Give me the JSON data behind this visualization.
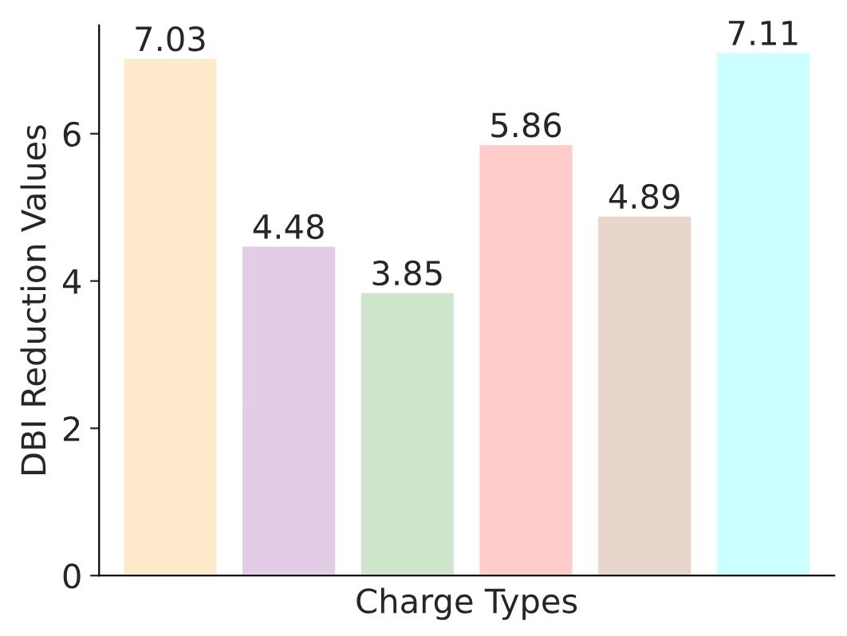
{
  "chart_data": {
    "type": "bar",
    "xlabel": "Charge Types",
    "ylabel": "DBI Reduction Values",
    "categories": [
      null,
      null,
      null,
      null,
      null,
      null
    ],
    "values": [
      7.03,
      4.48,
      3.85,
      5.86,
      4.89,
      7.11
    ],
    "colors": [
      "#ffebcc",
      "#e3cce6",
      "#cfe6cc",
      "#ffcccc",
      "#e8d5cb",
      "#ccffff"
    ],
    "ylim": [
      0,
      7.47
    ],
    "yticks": [
      0,
      2,
      4,
      6
    ],
    "data_labels": true,
    "grid": false,
    "legend": false
  }
}
